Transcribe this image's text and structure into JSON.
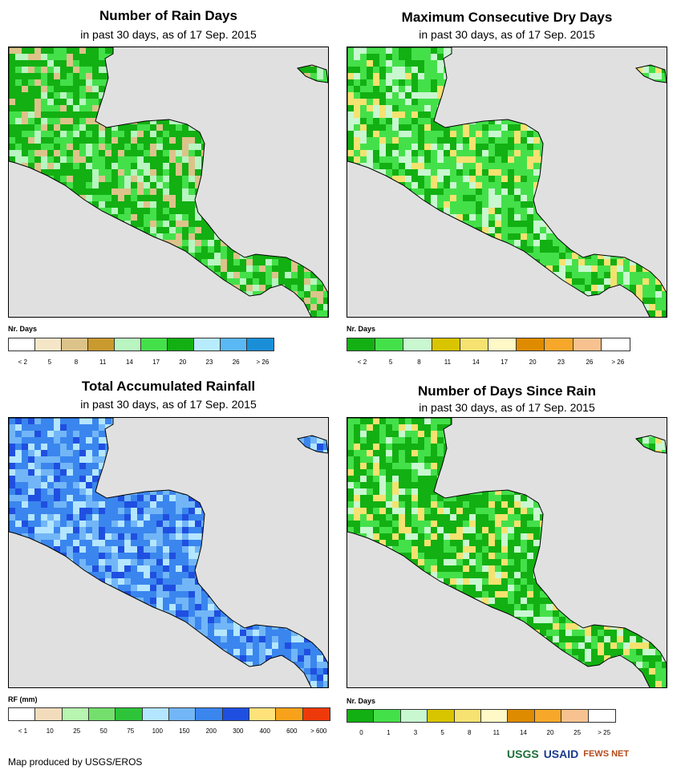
{
  "panels": [
    {
      "title": "Number of Rain Days",
      "subtitle": "in past 30 days, as of 17 Sep. 2015",
      "legend_unit": "Nr. Days",
      "legend_colors": [
        "#ffffff",
        "#f5e6c8",
        "#dcc38a",
        "#c99a2e",
        "#b8f5c0",
        "#44e04a",
        "#12b012",
        "#b7ecff",
        "#5ab8f5",
        "#1a8fd8"
      ],
      "legend_labels": [
        "< 2",
        "5",
        "8",
        "11",
        "14",
        "17",
        "20",
        "23",
        "26",
        "> 26"
      ],
      "palette_main": [
        "#12b012",
        "#44e04a",
        "#b8f5c0",
        "#dcc38a",
        "#5ab8f5"
      ]
    },
    {
      "title": "Maximum Consecutive Dry Days",
      "subtitle": "in past 30 days, as of 17 Sep. 2015",
      "legend_unit": "Nr. Days",
      "legend_colors": [
        "#12b012",
        "#44e04a",
        "#c8f7d0",
        "#d9c400",
        "#f5e270",
        "#fff9c8",
        "#df8b00",
        "#f7a82a",
        "#f7c28f",
        "#ffffff"
      ],
      "legend_labels": [
        "< 2",
        "5",
        "8",
        "11",
        "14",
        "17",
        "20",
        "23",
        "26",
        "> 26"
      ],
      "palette_main": [
        "#44e04a",
        "#12b012",
        "#c8f7d0",
        "#f5e270"
      ]
    },
    {
      "title": "Total Accumulated Rainfall",
      "subtitle": "in past 30 days, as of 17 Sep. 2015",
      "legend_unit": "RF (mm)",
      "legend_colors": [
        "#ffffff",
        "#f3dcbc",
        "#b7f5b0",
        "#74df6c",
        "#2ec43a",
        "#b4e6ff",
        "#72b6f7",
        "#3a86ee",
        "#1f4fe0",
        "#ffe27a",
        "#f7a21a",
        "#ee3a0a"
      ],
      "legend_labels": [
        "< 1",
        "10",
        "25",
        "50",
        "75",
        "100",
        "150",
        "200",
        "300",
        "400",
        "600",
        "> 600"
      ],
      "palette_main": [
        "#3a86ee",
        "#72b6f7",
        "#1f4fe0",
        "#b4e6ff",
        "#ffe27a",
        "#f7a21a"
      ]
    },
    {
      "title": "Number of Days Since Rain",
      "subtitle": "in past 30 days, as of 17 Sep. 2015",
      "legend_unit": "Nr. Days",
      "legend_colors": [
        "#12b012",
        "#44e04a",
        "#c8f7d0",
        "#d9c400",
        "#f5e270",
        "#fff9c8",
        "#df8b00",
        "#f7a82a",
        "#f7c28f",
        "#ffffff"
      ],
      "legend_labels": [
        "0",
        "1",
        "3",
        "5",
        "8",
        "11",
        "14",
        "20",
        "25",
        "> 25"
      ],
      "palette_main": [
        "#12b012",
        "#44e04a",
        "#c8f7d0",
        "#f5e270"
      ]
    }
  ],
  "credit": "Map produced by USGS/EROS",
  "logos": [
    "USGS",
    "USAID",
    "FEWS NET"
  ]
}
